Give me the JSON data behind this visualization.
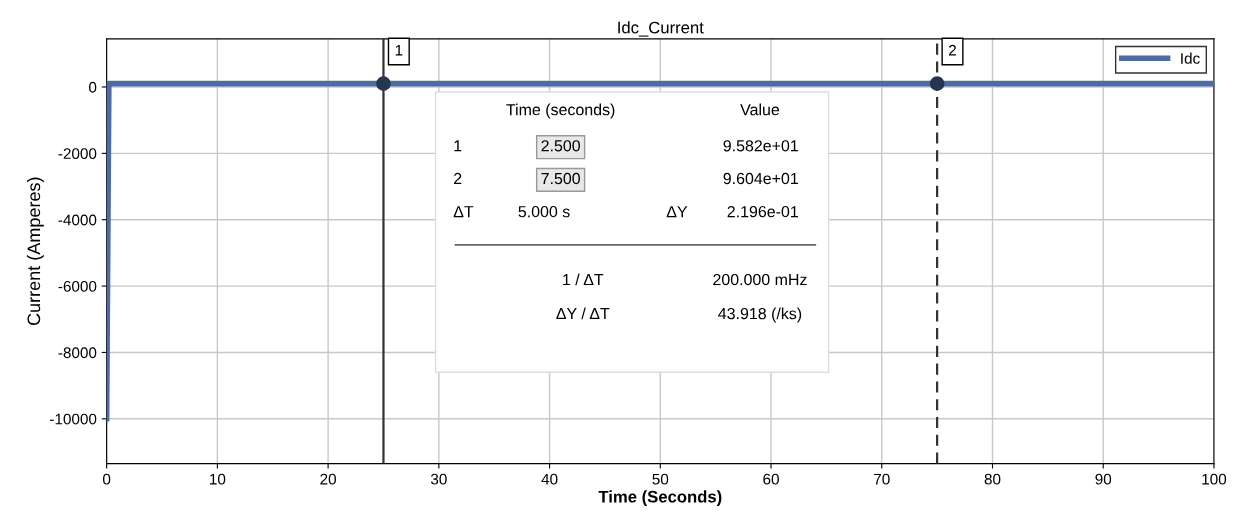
{
  "chart_data": {
    "type": "line",
    "title": "Idc_Current",
    "xlabel": "Time (Seconds)",
    "ylabel": "Current (Amperes)",
    "xlim": [
      0,
      100
    ],
    "ylim": [
      -11350,
      1450
    ],
    "xticks": [
      0,
      10,
      20,
      30,
      40,
      50,
      60,
      70,
      80,
      90,
      100
    ],
    "yticks": [
      0,
      -2000,
      -4000,
      -6000,
      -8000,
      -10000
    ],
    "grid": true,
    "legend": "top right",
    "marker": "none",
    "line_style": "solid",
    "series": [
      {
        "name": "Idc",
        "color": "#4f6ba3",
        "x": [
          0,
          0.2,
          100
        ],
        "values": [
          -10000,
          100,
          100
        ]
      },
      {
        "type": "scatter",
        "color": "#263650",
        "marker": "circle",
        "x": [
          25,
          75
        ],
        "values": [
          100,
          100
        ]
      }
    ],
    "ref_lines": [
      {
        "axis": "x",
        "value": 25,
        "color": "#333333",
        "line_style": "solid"
      },
      {
        "axis": "x",
        "value": 75,
        "color": "#333333",
        "line_style": "dashed"
      }
    ],
    "annotations": [
      {
        "text": "1",
        "x": 25,
        "y": 1450
      },
      {
        "text": "2",
        "x": 75,
        "y": 1450
      },
      "Time (seconds)",
      "Value",
      "1",
      "2.500",
      "9.582e+01",
      "2",
      "7.500",
      "9.604e+01",
      "ΔT",
      "5.000 s",
      "ΔY",
      "2.196e-01",
      "1 / ΔT",
      "200.000 mHz",
      "ΔY / ΔT",
      "43.918 (/ks)"
    ]
  }
}
